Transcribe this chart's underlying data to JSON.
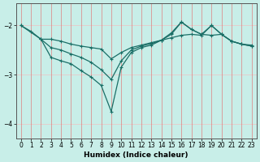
{
  "background_color": "#c8eee8",
  "grid_color_v": "#e08080",
  "grid_color_h": "#e8c8c8",
  "line_color": "#1a6e66",
  "xlabel": "Humidex (Indice chaleur)",
  "ylim": [
    -4.3,
    -1.55
  ],
  "xlim": [
    -0.5,
    23.5
  ],
  "yticks": [
    -4,
    -3,
    -2
  ],
  "xticks": [
    0,
    1,
    2,
    3,
    4,
    5,
    6,
    7,
    8,
    9,
    10,
    11,
    12,
    13,
    14,
    15,
    16,
    17,
    18,
    19,
    20,
    21,
    22,
    23
  ],
  "lines": [
    {
      "x": [
        0,
        1,
        2,
        3,
        4,
        5,
        6,
        7,
        8,
        9,
        10,
        11,
        12,
        13,
        14,
        15,
        16,
        17,
        18,
        19,
        20,
        21,
        22,
        23
      ],
      "y": [
        -2.0,
        -2.12,
        -2.28,
        -2.28,
        -2.32,
        -2.38,
        -2.42,
        -2.45,
        -2.48,
        -2.68,
        -2.55,
        -2.45,
        -2.4,
        -2.35,
        -2.3,
        -2.25,
        -2.2,
        -2.18,
        -2.2,
        -2.0,
        -2.18,
        -2.32,
        -2.38,
        -2.4
      ]
    },
    {
      "x": [
        0,
        2,
        3,
        4,
        5,
        6,
        7,
        8,
        9,
        10,
        11,
        12,
        13,
        14,
        15,
        16,
        17,
        18,
        19,
        20,
        21,
        22,
        23
      ],
      "y": [
        -2.0,
        -2.28,
        -2.45,
        -2.5,
        -2.58,
        -2.65,
        -2.75,
        -2.9,
        -3.1,
        -2.72,
        -2.5,
        -2.42,
        -2.37,
        -2.3,
        -2.18,
        -1.93,
        -2.08,
        -2.18,
        -2.0,
        -2.18,
        -2.32,
        -2.38,
        -2.42
      ]
    },
    {
      "x": [
        2,
        3,
        4,
        5,
        6,
        7,
        8,
        9,
        10,
        11,
        12,
        13,
        14,
        15,
        16,
        17,
        18,
        19,
        20,
        21,
        22,
        23
      ],
      "y": [
        -2.28,
        -2.65,
        -2.72,
        -2.78,
        -2.92,
        -3.05,
        -3.22,
        -3.75,
        -2.85,
        -2.55,
        -2.45,
        -2.4,
        -2.3,
        -2.15,
        -1.93,
        -2.08,
        -2.18,
        -2.2,
        -2.18,
        -2.32,
        -2.38,
        -2.42
      ]
    }
  ]
}
